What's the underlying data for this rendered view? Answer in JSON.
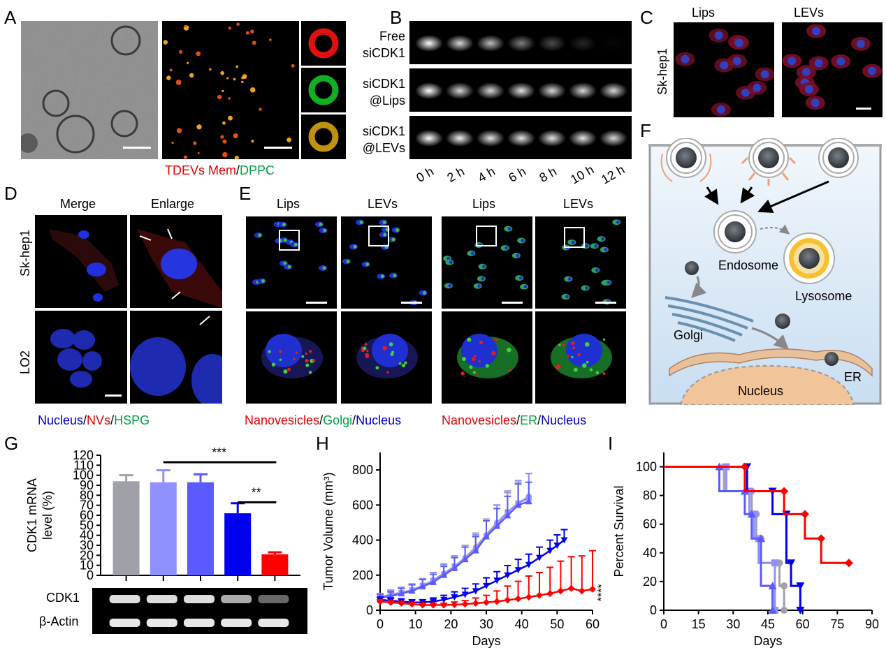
{
  "panel_letters": [
    "A",
    "B",
    "C",
    "D",
    "E",
    "F",
    "G",
    "H",
    "I"
  ],
  "panelA": {
    "caption_red": "TDEVs Mem",
    "caption_sep": "/",
    "caption_green": "DPPC"
  },
  "panelB": {
    "rows": [
      {
        "line1": "Free",
        "line2": "siCDK1",
        "intensity": [
          1.0,
          0.85,
          0.75,
          0.5,
          0.3,
          0.15,
          0.03
        ]
      },
      {
        "line1": "siCDK1",
        "line2": "@Lips",
        "intensity": [
          1.0,
          0.85,
          0.85,
          0.9,
          0.85,
          0.85,
          0.85
        ]
      },
      {
        "line1": "siCDK1",
        "line2": "@LEVs",
        "intensity": [
          1.0,
          0.95,
          0.9,
          0.9,
          0.9,
          0.9,
          0.85
        ]
      }
    ],
    "times": [
      "0 h",
      "2 h",
      "4 h",
      "6 h",
      "8 h",
      "10 h",
      "12 h"
    ]
  },
  "panelC": {
    "cols": [
      "Lips",
      "LEVs"
    ],
    "row": "Sk-hep1"
  },
  "panelD": {
    "cols": [
      "Merge",
      "Enlarge"
    ],
    "rows": [
      "Sk-hep1",
      "LO2"
    ],
    "caption": [
      {
        "t": "Nucleus",
        "c": "#0000d0"
      },
      {
        "t": "/",
        "c": "#000"
      },
      {
        "t": "NVs",
        "c": "#e00000"
      },
      {
        "t": "/",
        "c": "#000"
      },
      {
        "t": "HSPG",
        "c": "#00a040"
      }
    ]
  },
  "panelE": {
    "cols": [
      "Lips",
      "LEVs",
      "Lips",
      "LEVs"
    ],
    "caption1": [
      {
        "t": "Nanovesicles",
        "c": "#e00000"
      },
      {
        "t": "/",
        "c": "#000"
      },
      {
        "t": "Golgi",
        "c": "#00a040"
      },
      {
        "t": "/",
        "c": "#000"
      },
      {
        "t": "Nucleus",
        "c": "#0000d0"
      }
    ],
    "caption2": [
      {
        "t": "Nanovesicles",
        "c": "#e00000"
      },
      {
        "t": "/",
        "c": "#000"
      },
      {
        "t": "ER",
        "c": "#00a040"
      },
      {
        "t": "/",
        "c": "#000"
      },
      {
        "t": "Nucleus",
        "c": "#0000d0"
      }
    ]
  },
  "panelF": {
    "labels": {
      "endosome": "Endosome",
      "lysosome": "Lysosome",
      "golgi": "Golgi",
      "er": "ER",
      "nucleus": "Nucleus"
    }
  },
  "chart_data": [
    {
      "id": "G",
      "type": "bar",
      "ylabel": "CDK1 mRNA level (%)",
      "ylabel_lines": [
        "CDK1 mRNA",
        "level (%)"
      ],
      "ylim": [
        0,
        120
      ],
      "yticks": [
        0,
        10,
        20,
        30,
        40,
        50,
        60,
        70,
        80,
        90,
        100,
        110,
        120
      ],
      "values": [
        94,
        93,
        93,
        62,
        21
      ],
      "errors": [
        6,
        12,
        8,
        10,
        2
      ],
      "colors": [
        "#a0a0a8",
        "#9090ff",
        "#5a5aff",
        "#0000ee",
        "#ff0000"
      ],
      "annotations": [
        {
          "text": "***",
          "from": 1,
          "to": 4
        },
        {
          "text": "**",
          "from": 3,
          "to": 4
        }
      ],
      "blot_labels": [
        "CDK1",
        "β-Actin"
      ]
    },
    {
      "id": "H",
      "type": "line",
      "xlabel": "Days",
      "ylabel": "Tumor Volume (mm³)",
      "xlim": [
        0,
        60
      ],
      "xticks": [
        0,
        10,
        20,
        30,
        40,
        50,
        60
      ],
      "ylim": [
        0,
        900
      ],
      "yticks": [
        0,
        200,
        400,
        600,
        800
      ],
      "significance": "****",
      "series": [
        {
          "color": "#a0a0a8",
          "marker": "circle",
          "x": [
            0,
            3,
            6,
            9,
            12,
            15,
            18,
            21,
            24,
            27,
            30,
            33,
            36,
            39,
            42
          ],
          "y": [
            70,
            85,
            100,
            115,
            140,
            170,
            210,
            250,
            300,
            360,
            430,
            500,
            560,
            610,
            650
          ],
          "err": [
            20,
            25,
            30,
            35,
            40,
            45,
            55,
            60,
            70,
            80,
            90,
            100,
            110,
            120,
            130
          ]
        },
        {
          "color": "#9090ff",
          "marker": "square",
          "x": [
            0,
            3,
            6,
            9,
            12,
            15,
            18,
            21,
            24,
            27,
            30,
            33,
            36,
            39,
            42
          ],
          "y": [
            75,
            90,
            100,
            115,
            140,
            170,
            205,
            250,
            290,
            350,
            420,
            490,
            560,
            610,
            640
          ],
          "err": [
            20,
            25,
            30,
            35,
            40,
            45,
            55,
            60,
            70,
            80,
            90,
            110,
            120,
            130,
            140
          ]
        },
        {
          "color": "#5a5aff",
          "marker": "triangle-up",
          "x": [
            0,
            3,
            6,
            9,
            12,
            15,
            18,
            21,
            24,
            27,
            30,
            33,
            36,
            39,
            42
          ],
          "y": [
            70,
            80,
            95,
            110,
            135,
            160,
            200,
            240,
            290,
            340,
            420,
            480,
            540,
            600,
            620
          ],
          "err": [
            20,
            25,
            30,
            35,
            40,
            45,
            50,
            60,
            70,
            80,
            90,
            100,
            110,
            120,
            110
          ]
        },
        {
          "color": "#0000ee",
          "marker": "triangle-down",
          "x": [
            0,
            3,
            6,
            9,
            12,
            15,
            18,
            21,
            24,
            27,
            30,
            33,
            36,
            39,
            42,
            45,
            48,
            50,
            52
          ],
          "y": [
            60,
            55,
            50,
            45,
            45,
            50,
            60,
            75,
            90,
            110,
            140,
            170,
            200,
            230,
            260,
            300,
            340,
            370,
            400
          ],
          "err": [
            15,
            15,
            15,
            15,
            15,
            20,
            25,
            30,
            35,
            40,
            45,
            50,
            55,
            60,
            60,
            60,
            60,
            60,
            60
          ]
        },
        {
          "color": "#ff0000",
          "marker": "diamond",
          "x": [
            0,
            3,
            6,
            9,
            12,
            15,
            18,
            21,
            24,
            27,
            30,
            33,
            36,
            39,
            42,
            45,
            48,
            51,
            54,
            57,
            60
          ],
          "y": [
            50,
            45,
            40,
            35,
            30,
            30,
            30,
            32,
            35,
            40,
            45,
            50,
            58,
            65,
            75,
            85,
            95,
            110,
            125,
            110,
            120
          ],
          "err": [
            10,
            10,
            10,
            10,
            10,
            10,
            10,
            15,
            20,
            30,
            40,
            60,
            80,
            100,
            120,
            130,
            150,
            170,
            180,
            200,
            220
          ]
        }
      ]
    },
    {
      "id": "I",
      "type": "line",
      "xlabel": "Days",
      "ylabel": "Percent Survival",
      "xlim": [
        0,
        90
      ],
      "xticks": [
        0,
        15,
        30,
        45,
        60,
        75,
        90
      ],
      "ylim": [
        0,
        110
      ],
      "yticks": [
        0,
        20,
        40,
        60,
        80,
        100
      ],
      "series": [
        {
          "color": "#a0a0a8",
          "marker": "circle",
          "steps": [
            [
              0,
              100
            ],
            [
              26,
              100
            ],
            [
              26,
              83
            ],
            [
              38,
              83
            ],
            [
              38,
              67
            ],
            [
              40,
              67
            ],
            [
              40,
              50
            ],
            [
              42,
              50
            ],
            [
              42,
              33
            ],
            [
              50,
              33
            ],
            [
              50,
              17
            ],
            [
              52,
              17
            ],
            [
              52,
              0
            ]
          ]
        },
        {
          "color": "#9090ff",
          "marker": "square",
          "steps": [
            [
              0,
              100
            ],
            [
              27,
              100
            ],
            [
              27,
              83
            ],
            [
              37,
              83
            ],
            [
              37,
              67
            ],
            [
              39,
              67
            ],
            [
              39,
              50
            ],
            [
              41,
              50
            ],
            [
              41,
              33
            ],
            [
              48,
              33
            ],
            [
              48,
              0
            ]
          ]
        },
        {
          "color": "#5a5aff",
          "marker": "triangle-up",
          "steps": [
            [
              0,
              100
            ],
            [
              24,
              100
            ],
            [
              24,
              83
            ],
            [
              35,
              83
            ],
            [
              35,
              67
            ],
            [
              38,
              67
            ],
            [
              38,
              50
            ],
            [
              42,
              50
            ],
            [
              42,
              17
            ],
            [
              47,
              17
            ],
            [
              47,
              0
            ]
          ]
        },
        {
          "color": "#0000ee",
          "marker": "triangle-down",
          "steps": [
            [
              0,
              100
            ],
            [
              36,
              100
            ],
            [
              36,
              83
            ],
            [
              47,
              83
            ],
            [
              47,
              67
            ],
            [
              53,
              67
            ],
            [
              53,
              33
            ],
            [
              55,
              33
            ],
            [
              55,
              17
            ],
            [
              59,
              17
            ],
            [
              59,
              0
            ]
          ]
        },
        {
          "color": "#ff0000",
          "marker": "diamond",
          "steps": [
            [
              0,
              100
            ],
            [
              35,
              100
            ],
            [
              35,
              83
            ],
            [
              52,
              83
            ],
            [
              52,
              67
            ],
            [
              61,
              67
            ],
            [
              61,
              50
            ],
            [
              68,
              50
            ],
            [
              68,
              33
            ],
            [
              80,
              33
            ]
          ]
        }
      ]
    }
  ]
}
